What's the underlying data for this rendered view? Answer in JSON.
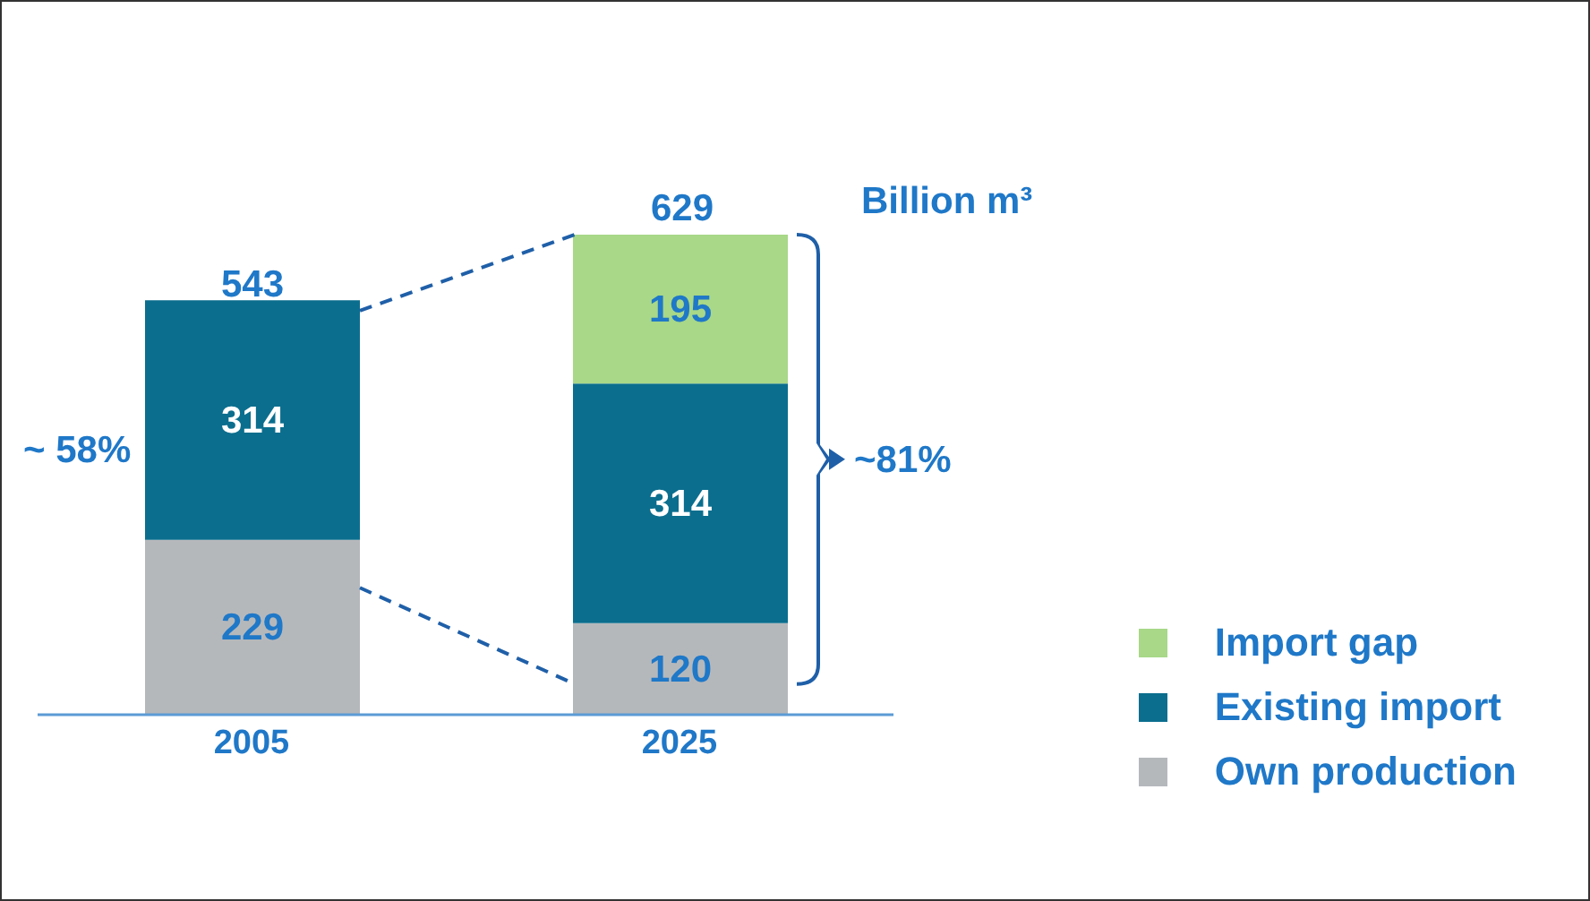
{
  "chart_data": {
    "type": "bar",
    "stacked": true,
    "categories": [
      "2005",
      "2025"
    ],
    "series": [
      {
        "name": "Own production",
        "color": "#b5b8bb",
        "values": [
          229,
          120
        ]
      },
      {
        "name": "Existing import",
        "color": "#0b6e8e",
        "values": [
          314,
          314
        ]
      },
      {
        "name": "Import gap",
        "color": "#a8d888",
        "values": [
          null,
          195
        ]
      }
    ],
    "data_labels": true,
    "totals": [
      "543",
      "629"
    ],
    "legend": "right",
    "annotations": [
      "Billion m³",
      "~ 58%",
      "~81%"
    ]
  }
}
